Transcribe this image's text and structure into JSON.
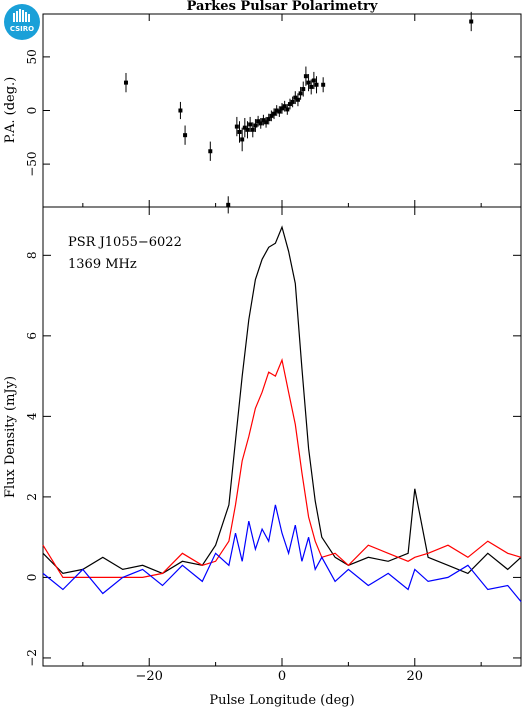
{
  "header": {
    "title": "Parkes Pulsar Polarimetry",
    "logo_text": "CSIRO"
  },
  "colors": {
    "total": "#000000",
    "linear": "#ff0000",
    "circular": "#0000ff",
    "logo": "#1aa0d8"
  },
  "chart_data": [
    {
      "type": "scatter",
      "panel": "position-angle",
      "ylabel": "P.A. (deg.)",
      "xlim": [
        -36,
        36
      ],
      "ylim": [
        -90,
        90
      ],
      "yticks": [
        -50,
        0,
        50
      ],
      "xticks": [
        -20,
        0,
        20
      ],
      "errorbar": true,
      "points": [
        {
          "x": -23.5,
          "y": 26,
          "err": 9
        },
        {
          "x": -15.3,
          "y": 0,
          "err": 8
        },
        {
          "x": -14.6,
          "y": -23,
          "err": 9
        },
        {
          "x": -10.8,
          "y": -38,
          "err": 9
        },
        {
          "x": -8.1,
          "y": -88,
          "err": 8
        },
        {
          "x": -6.8,
          "y": -15,
          "err": 9
        },
        {
          "x": -6.4,
          "y": -20,
          "err": 10
        },
        {
          "x": -6.0,
          "y": -27,
          "err": 11
        },
        {
          "x": -5.6,
          "y": -16,
          "err": 9
        },
        {
          "x": -5.2,
          "y": -18,
          "err": 8
        },
        {
          "x": -4.8,
          "y": -13,
          "err": 7
        },
        {
          "x": -4.4,
          "y": -18,
          "err": 7
        },
        {
          "x": -4.0,
          "y": -14,
          "err": 6
        },
        {
          "x": -3.6,
          "y": -10,
          "err": 5
        },
        {
          "x": -3.2,
          "y": -12,
          "err": 5
        },
        {
          "x": -2.8,
          "y": -9,
          "err": 5
        },
        {
          "x": -2.4,
          "y": -11,
          "err": 5
        },
        {
          "x": -2.0,
          "y": -8,
          "err": 5
        },
        {
          "x": -1.6,
          "y": -5,
          "err": 5
        },
        {
          "x": -1.2,
          "y": -3,
          "err": 5
        },
        {
          "x": -0.8,
          "y": 0,
          "err": 5
        },
        {
          "x": -0.4,
          "y": -1,
          "err": 5
        },
        {
          "x": 0.0,
          "y": 2,
          "err": 5
        },
        {
          "x": 0.4,
          "y": 4,
          "err": 5
        },
        {
          "x": 0.8,
          "y": 1,
          "err": 5
        },
        {
          "x": 1.2,
          "y": 6,
          "err": 5
        },
        {
          "x": 1.6,
          "y": 8,
          "err": 5
        },
        {
          "x": 2.0,
          "y": 12,
          "err": 6
        },
        {
          "x": 2.4,
          "y": 10,
          "err": 6
        },
        {
          "x": 2.8,
          "y": 16,
          "err": 6
        },
        {
          "x": 3.2,
          "y": 20,
          "err": 7
        },
        {
          "x": 3.6,
          "y": 32,
          "err": 9
        },
        {
          "x": 4.0,
          "y": 26,
          "err": 8
        },
        {
          "x": 4.4,
          "y": 22,
          "err": 7
        },
        {
          "x": 4.8,
          "y": 28,
          "err": 8
        },
        {
          "x": 5.2,
          "y": 24,
          "err": 8
        },
        {
          "x": 6.2,
          "y": 24,
          "err": 7
        },
        {
          "x": 28.5,
          "y": 83,
          "err": 9
        }
      ]
    },
    {
      "type": "line",
      "panel": "flux-density",
      "xlabel": "Pulse Longitude (deg)",
      "ylabel": "Flux Density (mJy)",
      "xlim": [
        -36,
        36
      ],
      "ylim": [
        -2.2,
        9.2
      ],
      "xticks": [
        -20,
        0,
        20
      ],
      "yticks": [
        -2,
        0,
        2,
        4,
        6,
        8
      ],
      "annotations": [
        "PSR J1055−6022",
        "1369 MHz"
      ],
      "x": [
        -36,
        -33,
        -30,
        -27,
        -24,
        -21,
        -18,
        -15,
        -12,
        -10,
        -8,
        -7,
        -6,
        -5,
        -4,
        -3,
        -2,
        -1,
        0,
        1,
        2,
        3,
        4,
        5,
        6,
        8,
        10,
        13,
        16,
        19,
        20,
        22,
        25,
        28,
        31,
        34,
        36
      ],
      "series": [
        {
          "key": "total",
          "values": [
            0.6,
            0.1,
            0.2,
            0.5,
            0.2,
            0.3,
            0.1,
            0.4,
            0.3,
            0.8,
            1.8,
            3.4,
            5.0,
            6.4,
            7.4,
            7.9,
            8.2,
            8.3,
            8.7,
            8.1,
            7.3,
            5.2,
            3.2,
            1.9,
            1.0,
            0.5,
            0.3,
            0.5,
            0.4,
            0.6,
            2.2,
            0.5,
            0.3,
            0.1,
            0.6,
            0.2,
            0.5
          ]
        },
        {
          "key": "linear",
          "values": [
            0.8,
            0.0,
            0.0,
            0.0,
            0.0,
            0.0,
            0.1,
            0.6,
            0.3,
            0.4,
            0.9,
            1.8,
            2.9,
            3.5,
            4.2,
            4.6,
            5.1,
            5.0,
            5.4,
            4.6,
            3.8,
            2.6,
            1.5,
            0.9,
            0.5,
            0.6,
            0.3,
            0.8,
            0.6,
            0.4,
            0.5,
            0.6,
            0.8,
            0.5,
            0.9,
            0.6,
            0.5
          ]
        },
        {
          "key": "circular",
          "values": [
            0.1,
            -0.3,
            0.2,
            -0.4,
            0.0,
            0.2,
            -0.2,
            0.3,
            -0.1,
            0.6,
            0.3,
            1.1,
            0.4,
            1.4,
            0.7,
            1.2,
            0.9,
            1.8,
            1.1,
            0.6,
            1.3,
            0.4,
            1.0,
            0.2,
            0.5,
            -0.1,
            0.2,
            -0.2,
            0.1,
            -0.3,
            0.2,
            -0.1,
            0.0,
            0.3,
            -0.3,
            -0.2,
            -0.6
          ]
        }
      ]
    }
  ]
}
